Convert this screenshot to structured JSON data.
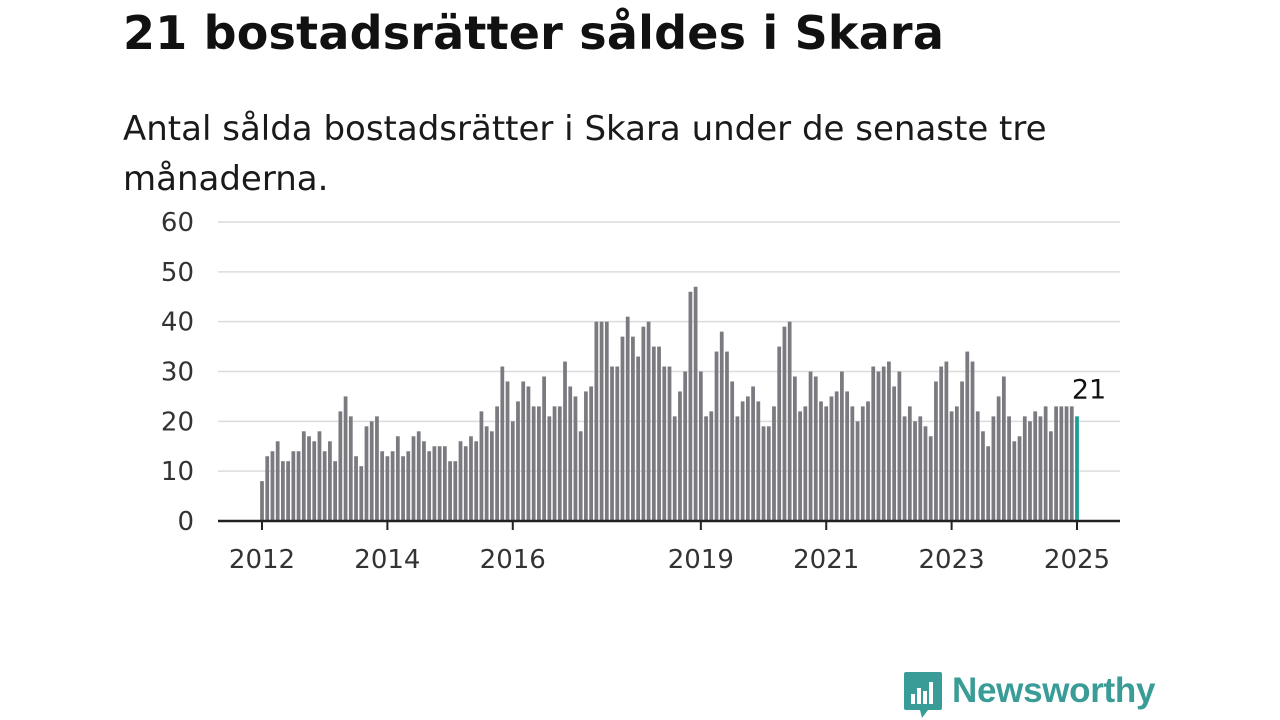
{
  "title": "21 bostadsrätter såldes i Skara",
  "subtitle": "Antal sålda bostadsrätter i Skara under de senaste tre månaderna.",
  "logo": {
    "text": "Newsworthy",
    "icon": "newsworthy-chart-bubble-icon",
    "color": "#3a9c96"
  },
  "chart_data": {
    "type": "bar",
    "title": "21 bostadsrätter såldes i Skara",
    "subtitle": "Antal sålda bostadsrätter i Skara under de senaste tre månaderna.",
    "xlabel": "",
    "ylabel": "",
    "ylim": [
      0,
      60
    ],
    "yticks": [
      "0",
      "10",
      "20",
      "30",
      "40",
      "50",
      "60"
    ],
    "xticks": [
      "2012",
      "2014",
      "2016",
      "2019",
      "2021",
      "2023",
      "2025"
    ],
    "xrange": [
      "2012-01",
      "2025-01"
    ],
    "grid": true,
    "colors": {
      "bars": "#7b7a80",
      "highlight": "#1a9e96",
      "grid": "#dcdcdc",
      "axis": "#222222"
    },
    "highlight_label": "21",
    "series": [
      {
        "start": "2012-01",
        "frequency": "monthly",
        "values": [
          8,
          13,
          14,
          16,
          12,
          12,
          14,
          14,
          18,
          17,
          16,
          18,
          14,
          16,
          12,
          22,
          25,
          21,
          13,
          11,
          19,
          20,
          21,
          14,
          13,
          14,
          17,
          13,
          14,
          17,
          18,
          16,
          14,
          15,
          15,
          15,
          12,
          12,
          16,
          15,
          17,
          16,
          22,
          19,
          18,
          23,
          31,
          28,
          20,
          24,
          28,
          27,
          23,
          23,
          29,
          21,
          23,
          23,
          32,
          27,
          25,
          18,
          26,
          27,
          40,
          40,
          40,
          31,
          31,
          37,
          41,
          37,
          33,
          39,
          40,
          35,
          35,
          31,
          31,
          21,
          26,
          30,
          46,
          47,
          30,
          21,
          22,
          34,
          38,
          34,
          28,
          21,
          24,
          25,
          27,
          24,
          19,
          19,
          23,
          35,
          39,
          40,
          29,
          22,
          23,
          30,
          29,
          24,
          23,
          25,
          26,
          30,
          26,
          23,
          20,
          23,
          24,
          31,
          30,
          31,
          32,
          27,
          30,
          21,
          23,
          20,
          21,
          19,
          17,
          28,
          31,
          32,
          22,
          23,
          28,
          34,
          32,
          22,
          18,
          15,
          21,
          25,
          29,
          21,
          16,
          17,
          21,
          20,
          22,
          21,
          23,
          18,
          23,
          23,
          23,
          23,
          21
        ]
      }
    ]
  }
}
